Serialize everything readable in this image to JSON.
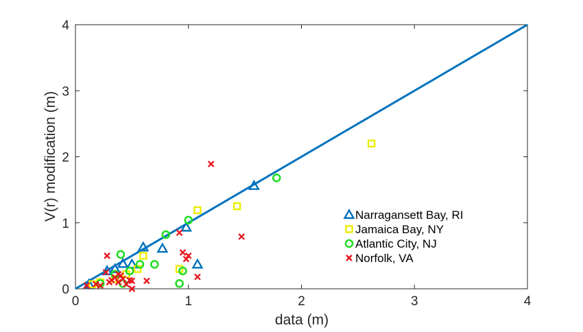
{
  "chart_data": {
    "type": "scatter",
    "xlabel": "data (m)",
    "ylabel": "V(r) modification (m)",
    "xlim": [
      0,
      4
    ],
    "ylim": [
      0,
      4
    ],
    "xticks": [
      0,
      1,
      2,
      3,
      4
    ],
    "yticks": [
      0,
      1,
      2,
      3,
      4
    ],
    "grid": false,
    "legend_position": "lower-right",
    "reference_line": {
      "x": [
        0,
        4
      ],
      "y": [
        0,
        4
      ],
      "color": "#0072BD"
    },
    "series": [
      {
        "name": "Narragansett Bay, RI",
        "marker": "triangle",
        "color": "#0072BD",
        "points": [
          [
            0.12,
            0.07
          ],
          [
            0.28,
            0.27
          ],
          [
            0.35,
            0.3
          ],
          [
            0.42,
            0.38
          ],
          [
            0.5,
            0.37
          ],
          [
            0.6,
            0.63
          ],
          [
            0.77,
            0.61
          ],
          [
            0.98,
            0.93
          ],
          [
            1.08,
            0.37
          ],
          [
            1.58,
            1.56
          ]
        ]
      },
      {
        "name": "Jamaica Bay, NY",
        "marker": "square",
        "color": "#EDED00",
        "points": [
          [
            0.15,
            0.07
          ],
          [
            0.22,
            0.1
          ],
          [
            0.35,
            0.15
          ],
          [
            0.45,
            0.22
          ],
          [
            0.55,
            0.3
          ],
          [
            0.6,
            0.5
          ],
          [
            0.92,
            0.3
          ],
          [
            1.08,
            1.19
          ],
          [
            1.43,
            1.25
          ],
          [
            2.62,
            2.2
          ]
        ]
      },
      {
        "name": "Atlantic City, NJ",
        "marker": "circle",
        "color": "#22DD22",
        "points": [
          [
            0.22,
            0.08
          ],
          [
            0.35,
            0.22
          ],
          [
            0.4,
            0.52
          ],
          [
            0.42,
            0.08
          ],
          [
            0.48,
            0.27
          ],
          [
            0.57,
            0.37
          ],
          [
            0.7,
            0.37
          ],
          [
            0.8,
            0.82
          ],
          [
            0.92,
            0.08
          ],
          [
            0.95,
            0.27
          ],
          [
            1.0,
            1.04
          ],
          [
            1.78,
            1.68
          ]
        ]
      },
      {
        "name": "Norfolk, VA",
        "marker": "x",
        "color": "#E8171F",
        "points": [
          [
            0.1,
            0.05
          ],
          [
            0.18,
            0.07
          ],
          [
            0.22,
            0.05
          ],
          [
            0.27,
            0.25
          ],
          [
            0.28,
            0.5
          ],
          [
            0.3,
            0.1
          ],
          [
            0.32,
            0.13
          ],
          [
            0.35,
            0.17
          ],
          [
            0.38,
            0.1
          ],
          [
            0.38,
            0.22
          ],
          [
            0.4,
            0.2
          ],
          [
            0.42,
            0.15
          ],
          [
            0.45,
            0.07
          ],
          [
            0.48,
            0.13
          ],
          [
            0.5,
            0.0
          ],
          [
            0.5,
            0.12
          ],
          [
            0.63,
            0.12
          ],
          [
            0.92,
            0.85
          ],
          [
            0.95,
            0.55
          ],
          [
            0.98,
            0.45
          ],
          [
            1.0,
            0.5
          ],
          [
            1.08,
            0.18
          ],
          [
            1.2,
            1.89
          ],
          [
            1.47,
            0.79
          ]
        ]
      }
    ]
  }
}
